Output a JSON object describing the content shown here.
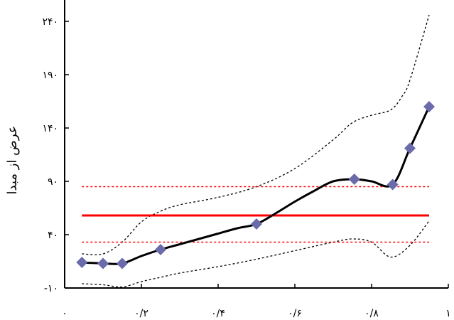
{
  "chart_data": {
    "type": "line",
    "title": "",
    "xlabel": "",
    "ylabel": "عرض از مبدا",
    "xlim": [
      0,
      1
    ],
    "ylim": [
      -10,
      260
    ],
    "grid": false,
    "x_ticks": [
      {
        "value": 0,
        "label": "۰"
      },
      {
        "value": 0.2,
        "label": "۰/۲"
      },
      {
        "value": 0.4,
        "label": "۰/۴"
      },
      {
        "value": 0.6,
        "label": "۰/۶"
      },
      {
        "value": 0.8,
        "label": "۰/۸"
      },
      {
        "value": 1,
        "label": "۱"
      }
    ],
    "y_ticks": [
      {
        "value": -10,
        "label": "-۱۰"
      },
      {
        "value": 40,
        "label": "۴۰"
      },
      {
        "value": 90,
        "label": "۹۰"
      },
      {
        "value": 140,
        "label": "۱۴۰"
      },
      {
        "value": 190,
        "label": "۱۹۰"
      },
      {
        "value": 240,
        "label": "۲۴۰"
      }
    ],
    "series": [
      {
        "style": "markers-diamond",
        "color": "#6b6bab",
        "x": [
          0.045,
          0.1,
          0.15,
          0.25,
          0.5,
          0.755,
          0.855,
          0.9,
          0.95
        ],
        "y": [
          14,
          13,
          13,
          26,
          50,
          92,
          87,
          121,
          160
        ]
      },
      {
        "style": "solid-curve",
        "color": "#000000",
        "x": [
          0.045,
          0.1,
          0.15,
          0.2,
          0.25,
          0.3,
          0.35,
          0.4,
          0.45,
          0.5,
          0.55,
          0.6,
          0.65,
          0.7,
          0.755,
          0.8,
          0.855,
          0.9,
          0.95
        ],
        "y": [
          14,
          13,
          13,
          20,
          26,
          31,
          36,
          41,
          46,
          50,
          60,
          71,
          81,
          90,
          92,
          90,
          87,
          121,
          160
        ]
      },
      {
        "style": "dotted-upper-band",
        "color": "#000000",
        "x": [
          0.045,
          0.1,
          0.15,
          0.2,
          0.25,
          0.3,
          0.4,
          0.5,
          0.6,
          0.7,
          0.75,
          0.8,
          0.85,
          0.88,
          0.9,
          0.95
        ],
        "y": [
          22,
          22,
          33,
          52,
          62,
          68,
          75,
          85,
          102,
          129,
          145,
          152,
          157,
          170,
          185,
          246
        ]
      },
      {
        "style": "dotted-lower-band",
        "color": "#000000",
        "x": [
          0.045,
          0.1,
          0.15,
          0.2,
          0.25,
          0.3,
          0.4,
          0.5,
          0.6,
          0.7,
          0.75,
          0.8,
          0.85,
          0.9,
          0.95
        ],
        "y": [
          -6,
          -7,
          -9,
          -4,
          0,
          4,
          10,
          17,
          25,
          33,
          36,
          33,
          19,
          30,
          53
        ]
      },
      {
        "style": "red-mean-line",
        "color": "#ff0000",
        "x": [
          0.045,
          0.95
        ],
        "y": [
          58,
          58
        ]
      },
      {
        "style": "red-dotted-upper-limit",
        "color": "#ff0000",
        "x": [
          0.045,
          0.95
        ],
        "y": [
          85,
          85
        ]
      },
      {
        "style": "red-dotted-lower-limit",
        "color": "#ff0000",
        "x": [
          0.045,
          0.95
        ],
        "y": [
          33,
          33
        ]
      }
    ]
  }
}
